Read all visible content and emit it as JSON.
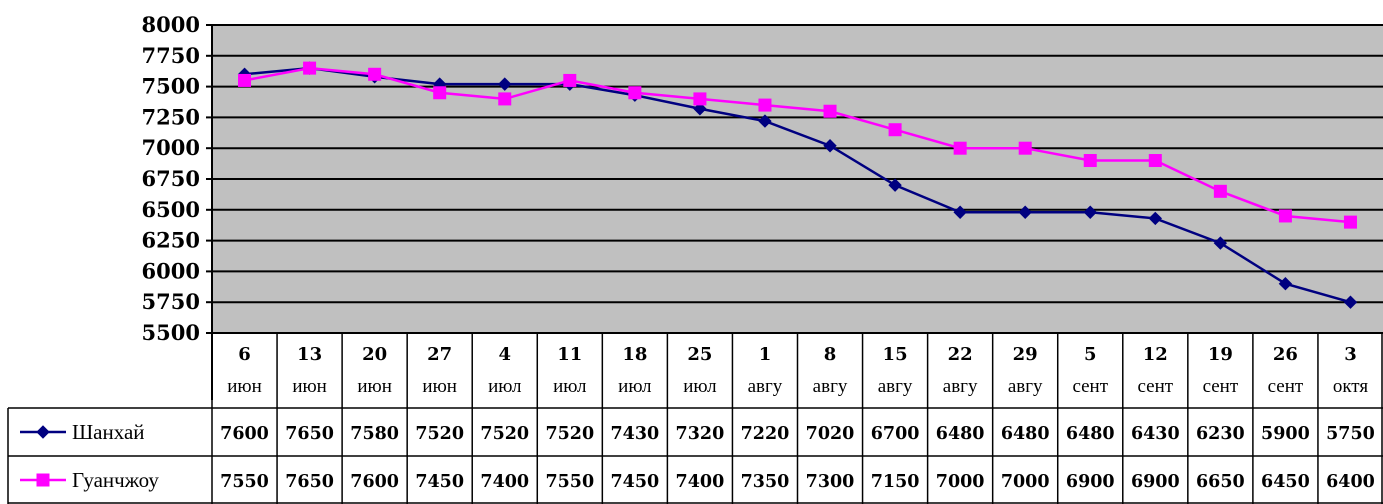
{
  "chart_data": {
    "type": "line",
    "categories": [
      {
        "day": "6",
        "month": "июн"
      },
      {
        "day": "13",
        "month": "июн"
      },
      {
        "day": "20",
        "month": "июн"
      },
      {
        "day": "27",
        "month": "июн"
      },
      {
        "day": "4",
        "month": "июл"
      },
      {
        "day": "11",
        "month": "июл"
      },
      {
        "day": "18",
        "month": "июл"
      },
      {
        "day": "25",
        "month": "июл"
      },
      {
        "day": "1",
        "month": "авгу"
      },
      {
        "day": "8",
        "month": "авгу"
      },
      {
        "day": "15",
        "month": "авгу"
      },
      {
        "day": "22",
        "month": "авгу"
      },
      {
        "day": "29",
        "month": "авгу"
      },
      {
        "day": "5",
        "month": "сент"
      },
      {
        "day": "12",
        "month": "сент"
      },
      {
        "day": "19",
        "month": "сент"
      },
      {
        "day": "26",
        "month": "сент"
      },
      {
        "day": "3",
        "month": "октя"
      }
    ],
    "series": [
      {
        "name": "Шанхай",
        "color": "#000080",
        "marker": "diamond",
        "values": [
          7600,
          7650,
          7580,
          7520,
          7520,
          7520,
          7430,
          7320,
          7220,
          7020,
          6700,
          6480,
          6480,
          6480,
          6430,
          6230,
          5900,
          5750
        ]
      },
      {
        "name": "Гуанчжоу",
        "color": "#FF00FF",
        "marker": "square",
        "values": [
          7550,
          7650,
          7600,
          7450,
          7400,
          7550,
          7450,
          7400,
          7350,
          7300,
          7150,
          7000,
          7000,
          6900,
          6900,
          6650,
          6450,
          6400
        ]
      }
    ],
    "ylim": [
      5500,
      8000
    ],
    "yticks": [
      "5500",
      "5750",
      "6000",
      "6250",
      "6500",
      "6750",
      "7000",
      "7250",
      "7500",
      "7750",
      "8000"
    ],
    "grid": true,
    "plot_background": "#C0C0C0",
    "legend": "data-table"
  }
}
